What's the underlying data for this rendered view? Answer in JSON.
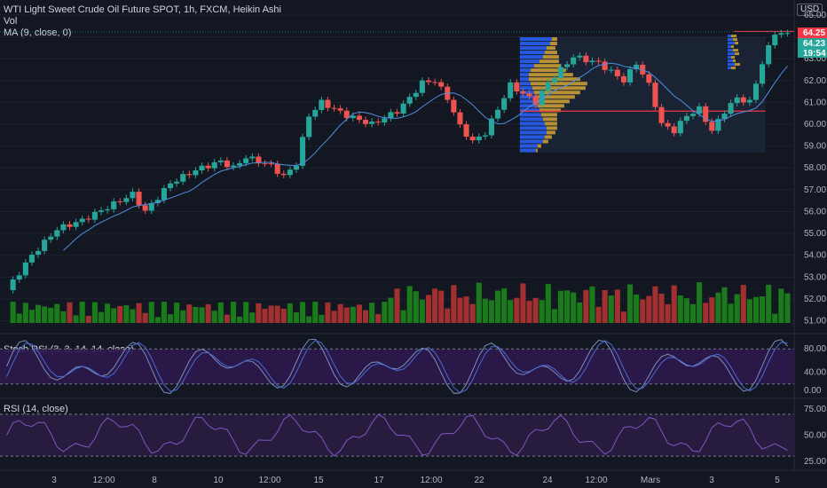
{
  "legend": {
    "symbol": "WTI Light Sweet Crude Oil Future SPOT, 1h, FXCM, Heikin Ashi",
    "volume": "Vol",
    "ma": "MA (9, close, 0)",
    "stoch": "Stoch RSI (3, 3, 14, 14, close)",
    "rsi": "RSI (14, close)"
  },
  "currency": "USD",
  "price_tags": {
    "high": "64.25",
    "last": "64.23",
    "countdown": "19:54"
  },
  "colors": {
    "background": "#131722",
    "grid": "#1e222d",
    "up": "#26a69a",
    "down": "#ef5350",
    "vol_up": "#1b7a1b",
    "vol_down": "#a33030",
    "ma": "#4e8fe0",
    "poc_line": "#f23645",
    "profile_up": "#2962ff",
    "profile_down": "#d4a535",
    "stoch_band": "#2e1a4d",
    "stoch_k": "#7b8fb8",
    "stoch_d": "#4a6ad6",
    "rsi_band": "#2a1d40",
    "rsi_line": "#7e57c2"
  },
  "chart_data": {
    "type": "candlestick",
    "title": "WTI Light Sweet Crude Oil Future SPOT, 1h, FXCM, Heikin Ashi",
    "price_axis": {
      "range": [
        50.9,
        65.2
      ],
      "ticks": [
        "65.00",
        "64.00",
        "63.00",
        "62.00",
        "61.00",
        "60.00",
        "59.00",
        "58.00",
        "57.00",
        "56.00",
        "55.00",
        "54.00",
        "53.00",
        "52.00",
        "51.00"
      ]
    },
    "x_axis": {
      "ticks": [
        "3",
        "12:00",
        "8",
        "10",
        "12:00",
        "15",
        "17",
        "12:00",
        "22",
        "24",
        "12:00",
        "Mars",
        "3",
        "5"
      ]
    },
    "price_path": [
      [
        0,
        52.4
      ],
      [
        4,
        54.0
      ],
      [
        8,
        55.2
      ],
      [
        12,
        55.6
      ],
      [
        16,
        56.2
      ],
      [
        20,
        56.8
      ],
      [
        22,
        56.0
      ],
      [
        26,
        57.3
      ],
      [
        30,
        57.9
      ],
      [
        34,
        58.3
      ],
      [
        36,
        58.0
      ],
      [
        38,
        58.5
      ],
      [
        42,
        58.1
      ],
      [
        44,
        57.6
      ],
      [
        46,
        58.2
      ],
      [
        48,
        60.4
      ],
      [
        50,
        61.0
      ],
      [
        54,
        60.4
      ],
      [
        58,
        60.0
      ],
      [
        62,
        60.6
      ],
      [
        64,
        61.2
      ],
      [
        66,
        61.9
      ],
      [
        68,
        62.0
      ],
      [
        70,
        61.2
      ],
      [
        72,
        59.9
      ],
      [
        74,
        59.2
      ],
      [
        76,
        59.6
      ],
      [
        80,
        61.8
      ],
      [
        84,
        61.0
      ],
      [
        86,
        61.9
      ],
      [
        90,
        63.1
      ],
      [
        94,
        62.8
      ],
      [
        98,
        62.0
      ],
      [
        100,
        62.8
      ],
      [
        102,
        61.8
      ],
      [
        104,
        60.0
      ],
      [
        106,
        59.7
      ],
      [
        108,
        60.4
      ],
      [
        110,
        60.7
      ],
      [
        112,
        59.7
      ],
      [
        114,
        60.6
      ],
      [
        116,
        61.2
      ],
      [
        118,
        61.0
      ],
      [
        120,
        62.8
      ],
      [
        122,
        64.2
      ],
      [
        124,
        64.1
      ]
    ],
    "poc_price": 60.6,
    "last_price": 64.23,
    "high_price": 64.25,
    "volume_profile": {
      "range": [
        58.7,
        64.0
      ],
      "rows_up": [
        18,
        20,
        26,
        28,
        30,
        30,
        28,
        26,
        24,
        22,
        20,
        20,
        18,
        16,
        14,
        12,
        10,
        10,
        12,
        16,
        22,
        26,
        28,
        30,
        34,
        36
      ],
      "rows_down": [
        2,
        4,
        6,
        8,
        10,
        12,
        14,
        16,
        18,
        24,
        30,
        36,
        44,
        52,
        60,
        64,
        58,
        50,
        40,
        30,
        22,
        18,
        14,
        10,
        8,
        6
      ]
    },
    "stoch_rsi": {
      "range": [
        0,
        100
      ],
      "ticks": [
        "80.00",
        "40.00",
        "0.00"
      ],
      "bands": [
        20,
        80
      ]
    },
    "rsi": {
      "range": [
        20,
        80
      ],
      "ticks": [
        "75.00",
        "50.00",
        "25.00"
      ],
      "bands": [
        30,
        70
      ]
    }
  }
}
